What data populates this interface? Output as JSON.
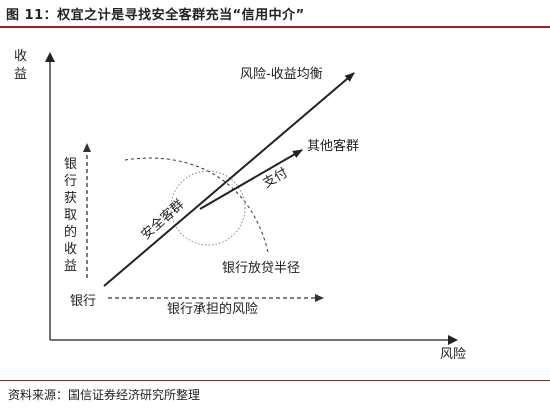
{
  "figure": {
    "title": "图 11：权宜之计是寻找安全客群充当“信用中介”",
    "source": "资料来源：国信证券经济研究所整理"
  },
  "axes": {
    "y_label_line1": "收",
    "y_label_line2": "益",
    "x_label": "风险",
    "origin_label": "银行"
  },
  "labels": {
    "risk_return_balance": "风险-收益均衡",
    "other_customers": "其他客群",
    "payment": "支付",
    "safe_customers": "安全客群",
    "bank_lending_radius": "银行放贷半径",
    "bank_risk": "银行承担的风险",
    "bank_income_chars": [
      "银",
      "行",
      "获",
      "取",
      "的",
      "收",
      "益"
    ]
  }
}
